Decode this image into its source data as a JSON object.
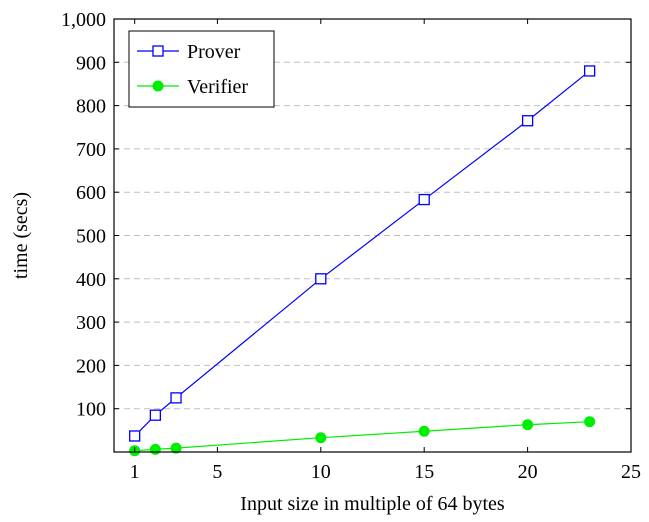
{
  "chart_data": {
    "type": "line",
    "xlabel": "Input size in multiple of 64 bytes",
    "ylabel": "time (secs)",
    "xlim": [
      0,
      25
    ],
    "ylim": [
      0,
      1000
    ],
    "x_ticks": [
      1,
      5,
      10,
      15,
      20,
      25
    ],
    "y_ticks": [
      100,
      200,
      300,
      400,
      500,
      600,
      700,
      800,
      900,
      1000
    ],
    "x_tick_labels": [
      "1",
      "5",
      "10",
      "15",
      "20",
      "25"
    ],
    "y_tick_labels": [
      "100",
      "200",
      "300",
      "400",
      "500",
      "600",
      "700",
      "800",
      "900",
      "1,000"
    ],
    "grid": "horizontal dashed",
    "legend_position": "top-left",
    "series": [
      {
        "name": "Prover",
        "color": "#0000ff",
        "marker": "open-square",
        "x": [
          1,
          2,
          3,
          10,
          15,
          20,
          23
        ],
        "y": [
          37,
          85,
          125,
          400,
          583,
          765,
          880
        ]
      },
      {
        "name": "Verifier",
        "color": "#00ee00",
        "marker": "filled-circle",
        "x": [
          1,
          2,
          3,
          10,
          15,
          20,
          23
        ],
        "y": [
          3,
          6,
          9,
          33,
          48,
          63,
          70
        ]
      }
    ]
  }
}
